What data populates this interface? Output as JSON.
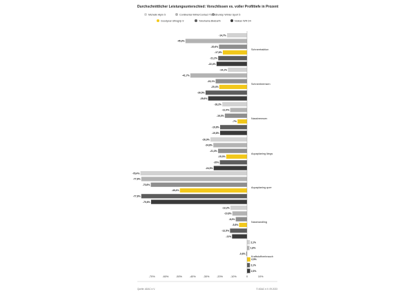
{
  "chart_data": {
    "type": "bar",
    "orientation": "horizontal",
    "title": "Durchschnittlicher Leistungsunterschied: Vorschlissen vs. voller Profiltiefe in Prozent",
    "xlim": [
      -75,
      10
    ],
    "xticks": [
      "-70%",
      "-60%",
      "-50%",
      "-40%",
      "-30%",
      "-20%",
      "-10%",
      "0",
      "10%"
    ],
    "xtick_values": [
      -70,
      -60,
      -50,
      -40,
      -30,
      -20,
      -10,
      0,
      10
    ],
    "grid": false,
    "legend_position": "top",
    "series": [
      {
        "name": "Michelin Alpin 5",
        "color": "#d2d2d2"
      },
      {
        "name": "Continental WinterContact TS860",
        "color": "#b3b3b3"
      },
      {
        "name": "Dunlop Winter Sport 5",
        "color": "#8e8e8e"
      },
      {
        "name": "Goodyear Ultragrip 9",
        "color": "#f2c81b"
      },
      {
        "name": "Yokohama BluEarth",
        "color": "#5c5c5c"
      },
      {
        "name": "Nokian WR D4",
        "color": "#3a3a3a"
      }
    ],
    "categories": [
      {
        "name": "Schneetraktion",
        "values": [
          -14.7,
          -45.3,
          -20.6,
          -17.8,
          -21.2,
          -22.4
        ],
        "labels": [
          "-14,7%",
          "-45,3%",
          "-20,6%",
          "-17,8%",
          "-21,2%",
          "-22,4%"
        ]
      },
      {
        "name": "Schneebremsen",
        "values": [
          -14.1,
          -41.7,
          -23.1,
          -20.4,
          -30.5,
          -28.6
        ],
        "labels": [
          "-14,1%",
          "-41,7%",
          "-23,1%",
          "-20,4%",
          "-30,5%",
          "-28,6%"
        ]
      },
      {
        "name": "Nassbremsen",
        "values": [
          -18.2,
          -12.4,
          -16.3,
          -7,
          -19.8,
          -19.8
        ],
        "labels": [
          "-18,2%",
          "-12,4%",
          "-16,3%",
          "-7%",
          "-19,8%",
          "-19,8%"
        ]
      },
      {
        "name": "Aquaplaning längs",
        "values": [
          -26.9,
          -24.8,
          -21.3,
          -15.3,
          -20,
          -24.5
        ],
        "labels": [
          "-26,9%",
          "-24,8%",
          "-21,3%",
          "-15,3%",
          "-20%",
          "-24,5%"
        ]
      },
      {
        "name": "Aquaplaning quer",
        "values": [
          -78.4,
          -77.8,
          -70.8,
          -49.4,
          -77.8,
          -70.6
        ],
        "labels": [
          "-78,4%",
          "-77,8%",
          "-70,8%",
          "-49,4%",
          "-77,8%",
          "-70,6%"
        ]
      },
      {
        "name": "Nasshandling",
        "values": [
          -12.2,
          -10.8,
          -8.3,
          -5.8,
          -12.5,
          -11
        ],
        "labels": [
          "-12,2%",
          "-10,8%",
          "-8,3%",
          "-5,8%",
          "-12,5%",
          "-11%"
        ]
      },
      {
        "name": "Kraftstoffverbrauch",
        "values": [
          2.1,
          1.8,
          -0.6,
          2.5,
          2.1,
          2.3
        ],
        "labels": [
          "2,1%",
          "1,8%",
          "-0,6%",
          "2,5%",
          "2,1%",
          "2,3%"
        ]
      }
    ]
  },
  "footer": {
    "source": "Quelle: ADAC e.V.",
    "copyright": "© ADAC e.V. 09.2023"
  }
}
